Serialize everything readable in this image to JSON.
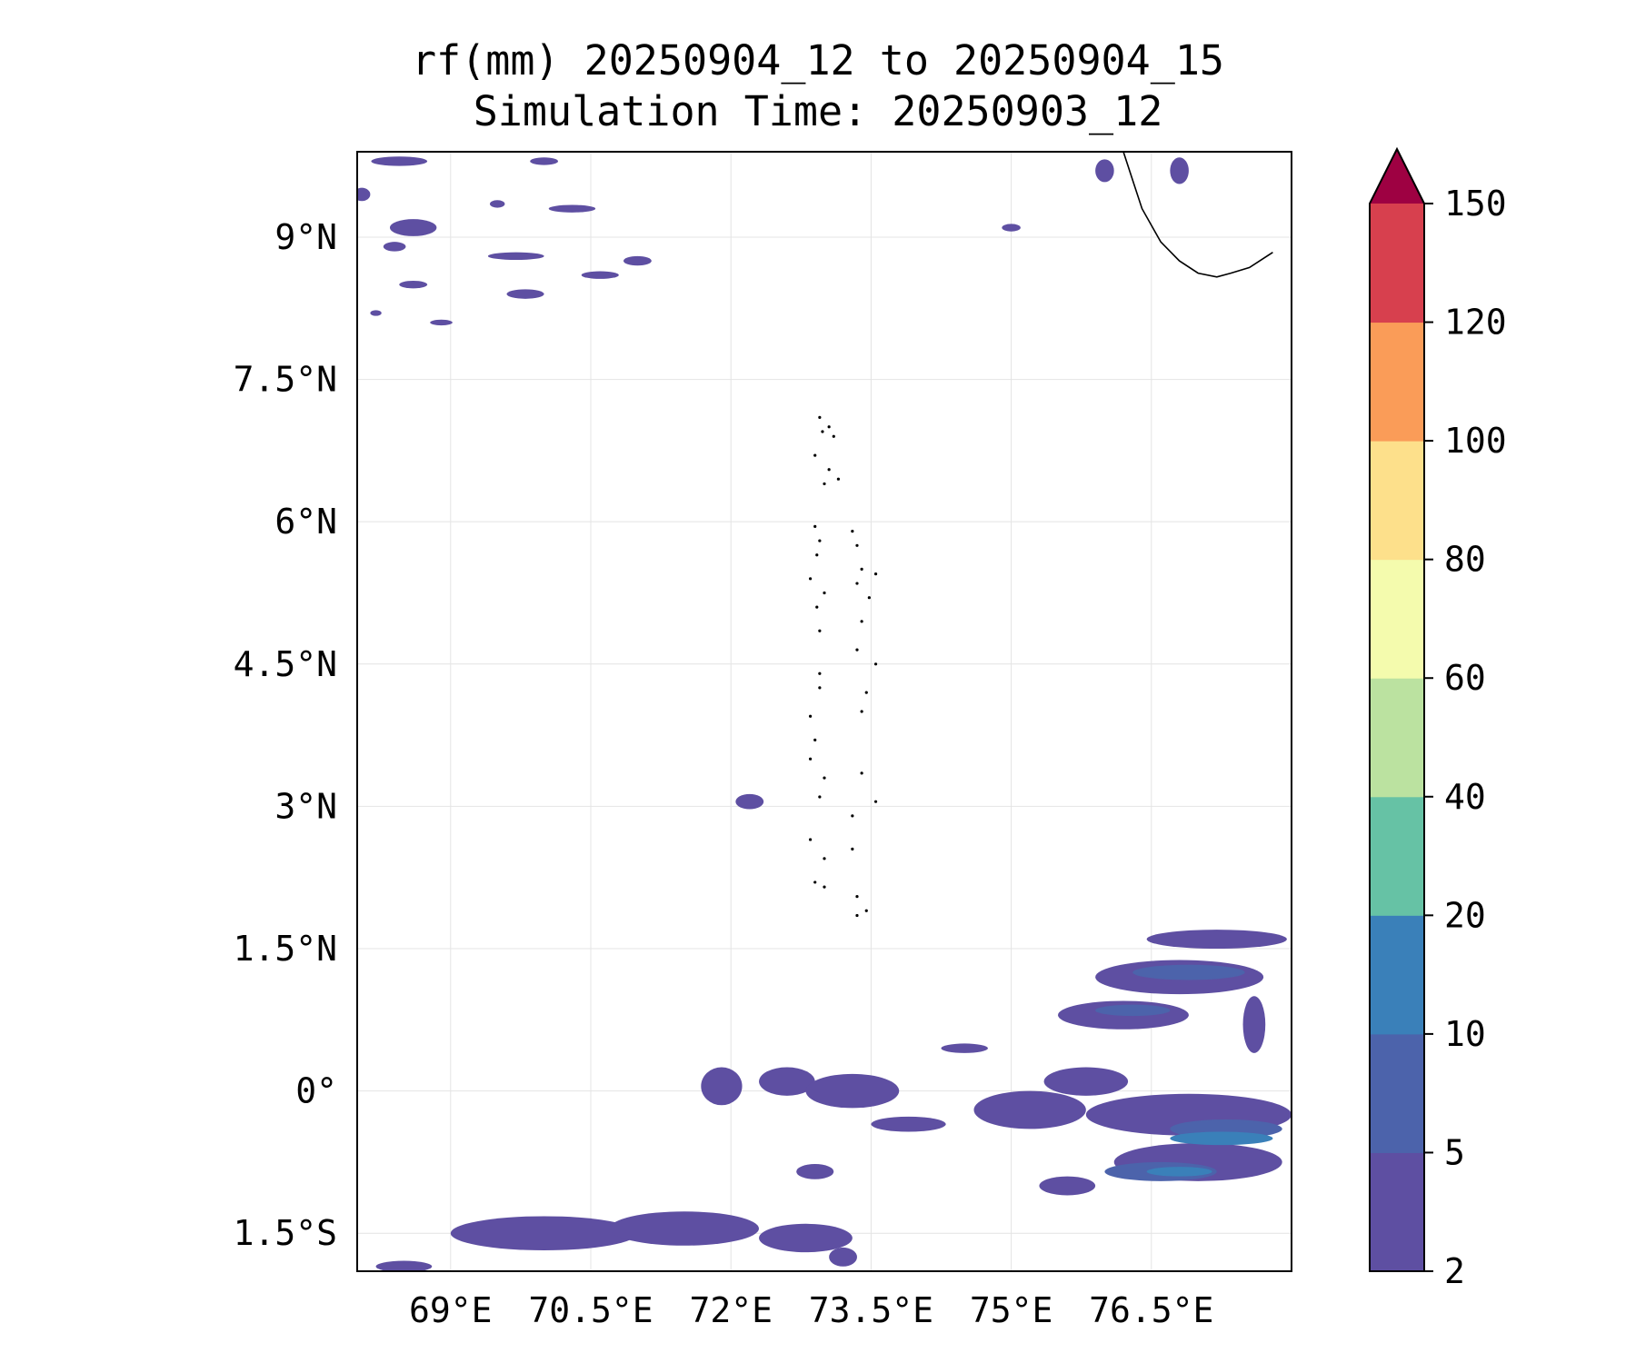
{
  "title": {
    "line1": "rf(mm) 20250904_12 to 20250904_15",
    "line2": "Simulation Time: 20250903_12"
  },
  "map": {
    "lon_range": [
      68.0,
      78.0
    ],
    "lat_range": [
      -1.9,
      9.9
    ],
    "x_ticks": [
      {
        "value": 69.0,
        "label": "69°E"
      },
      {
        "value": 70.5,
        "label": "70.5°E"
      },
      {
        "value": 72.0,
        "label": "72°E"
      },
      {
        "value": 73.5,
        "label": "73.5°E"
      },
      {
        "value": 75.0,
        "label": "75°E"
      },
      {
        "value": 76.5,
        "label": "76.5°E"
      }
    ],
    "y_ticks": [
      {
        "value": 9.0,
        "label": "9°N"
      },
      {
        "value": 7.5,
        "label": "7.5°N"
      },
      {
        "value": 6.0,
        "label": "6°N"
      },
      {
        "value": 4.5,
        "label": "4.5°N"
      },
      {
        "value": 3.0,
        "label": "3°N"
      },
      {
        "value": 1.5,
        "label": "1.5°N"
      },
      {
        "value": 0.0,
        "label": "0°"
      },
      {
        "value": -1.5,
        "label": "1.5°S"
      }
    ],
    "grid": true,
    "coastline": [
      [
        76.2,
        9.9
      ],
      [
        76.3,
        9.6
      ],
      [
        76.4,
        9.3
      ],
      [
        76.6,
        8.95
      ],
      [
        76.8,
        8.75
      ],
      [
        77.0,
        8.62
      ],
      [
        77.2,
        8.58
      ],
      [
        77.35,
        8.62
      ],
      [
        77.55,
        8.68
      ],
      [
        77.8,
        8.84
      ]
    ],
    "islands": [
      [
        72.95,
        7.1
      ],
      [
        73.05,
        7.0
      ],
      [
        73.1,
        6.9
      ],
      [
        72.98,
        6.95
      ],
      [
        72.9,
        6.7
      ],
      [
        73.05,
        6.55
      ],
      [
        73.15,
        6.45
      ],
      [
        73.0,
        6.4
      ],
      [
        72.9,
        5.95
      ],
      [
        72.95,
        5.8
      ],
      [
        72.92,
        5.65
      ],
      [
        73.3,
        5.9
      ],
      [
        73.35,
        5.75
      ],
      [
        73.4,
        5.5
      ],
      [
        73.55,
        5.45
      ],
      [
        72.85,
        5.4
      ],
      [
        73.0,
        5.25
      ],
      [
        72.92,
        5.1
      ],
      [
        73.35,
        5.35
      ],
      [
        73.48,
        5.2
      ],
      [
        73.4,
        4.95
      ],
      [
        72.95,
        4.85
      ],
      [
        73.35,
        4.65
      ],
      [
        73.55,
        4.5
      ],
      [
        72.95,
        4.4
      ],
      [
        73.45,
        4.2
      ],
      [
        72.95,
        4.25
      ],
      [
        72.85,
        3.95
      ],
      [
        73.4,
        4.0
      ],
      [
        72.9,
        3.7
      ],
      [
        72.85,
        3.5
      ],
      [
        73.0,
        3.3
      ],
      [
        72.95,
        3.1
      ],
      [
        73.4,
        3.35
      ],
      [
        73.55,
        3.05
      ],
      [
        73.3,
        2.9
      ],
      [
        72.85,
        2.65
      ],
      [
        73.0,
        2.45
      ],
      [
        73.3,
        2.55
      ],
      [
        72.9,
        2.2
      ],
      [
        73.0,
        2.15
      ],
      [
        73.35,
        2.05
      ],
      [
        73.45,
        1.9
      ],
      [
        73.35,
        1.85
      ]
    ]
  },
  "rain_fields": [
    {
      "level": "2-5",
      "lon": 68.05,
      "lat": 9.45,
      "rx": 0.09,
      "ry": 0.07
    },
    {
      "level": "2-5",
      "lon": 68.6,
      "lat": 9.1,
      "rx": 0.25,
      "ry": 0.09
    },
    {
      "level": "2-5",
      "lon": 68.45,
      "lat": 9.8,
      "rx": 0.3,
      "ry": 0.05
    },
    {
      "level": "2-5",
      "lon": 70.0,
      "lat": 9.8,
      "rx": 0.15,
      "ry": 0.04
    },
    {
      "level": "2-5",
      "lon": 69.5,
      "lat": 9.35,
      "rx": 0.08,
      "ry": 0.04
    },
    {
      "level": "2-5",
      "lon": 70.3,
      "lat": 9.3,
      "rx": 0.25,
      "ry": 0.04
    },
    {
      "level": "2-5",
      "lon": 68.4,
      "lat": 8.9,
      "rx": 0.12,
      "ry": 0.05
    },
    {
      "level": "2-5",
      "lon": 69.7,
      "lat": 8.8,
      "rx": 0.3,
      "ry": 0.04
    },
    {
      "level": "2-5",
      "lon": 70.6,
      "lat": 8.6,
      "rx": 0.2,
      "ry": 0.04
    },
    {
      "level": "2-5",
      "lon": 68.6,
      "lat": 8.5,
      "rx": 0.15,
      "ry": 0.04
    },
    {
      "level": "2-5",
      "lon": 69.8,
      "lat": 8.4,
      "rx": 0.2,
      "ry": 0.05
    },
    {
      "level": "2-5",
      "lon": 71.0,
      "lat": 8.75,
      "rx": 0.15,
      "ry": 0.05
    },
    {
      "level": "2-5",
      "lon": 68.9,
      "lat": 8.1,
      "rx": 0.12,
      "ry": 0.03
    },
    {
      "level": "2-5",
      "lon": 68.2,
      "lat": 8.2,
      "rx": 0.06,
      "ry": 0.03
    },
    {
      "level": "2-5",
      "lon": 75.0,
      "lat": 9.1,
      "rx": 0.1,
      "ry": 0.04
    },
    {
      "level": "2-5",
      "lon": 76.0,
      "lat": 9.7,
      "rx": 0.1,
      "ry": 0.12
    },
    {
      "level": "2-5",
      "lon": 76.8,
      "lat": 9.7,
      "rx": 0.1,
      "ry": 0.14
    },
    {
      "level": "2-5",
      "lon": 72.2,
      "lat": 3.05,
      "rx": 0.15,
      "ry": 0.08
    },
    {
      "level": "2-5",
      "lon": 71.9,
      "lat": 0.05,
      "rx": 0.22,
      "ry": 0.2
    },
    {
      "level": "2-5",
      "lon": 72.6,
      "lat": 0.1,
      "rx": 0.3,
      "ry": 0.15
    },
    {
      "level": "2-5",
      "lon": 73.3,
      "lat": 0.0,
      "rx": 0.5,
      "ry": 0.18
    },
    {
      "level": "2-5",
      "lon": 73.9,
      "lat": -0.35,
      "rx": 0.4,
      "ry": 0.08
    },
    {
      "level": "2-5",
      "lon": 72.9,
      "lat": -0.85,
      "rx": 0.2,
      "ry": 0.08
    },
    {
      "level": "2-5",
      "lon": 74.5,
      "lat": 0.45,
      "rx": 0.25,
      "ry": 0.05
    },
    {
      "level": "2-5",
      "lon": 75.2,
      "lat": -0.2,
      "rx": 0.6,
      "ry": 0.2
    },
    {
      "level": "2-5",
      "lon": 75.8,
      "lat": 0.1,
      "rx": 0.45,
      "ry": 0.15
    },
    {
      "level": "2-5",
      "lon": 76.2,
      "lat": 0.8,
      "rx": 0.7,
      "ry": 0.15
    },
    {
      "level": "2-5",
      "lon": 76.8,
      "lat": 1.2,
      "rx": 0.9,
      "ry": 0.18
    },
    {
      "level": "2-5",
      "lon": 77.2,
      "lat": 1.6,
      "rx": 0.75,
      "ry": 0.1
    },
    {
      "level": "2-5",
      "lon": 76.9,
      "lat": -0.25,
      "rx": 1.1,
      "ry": 0.22
    },
    {
      "level": "2-5",
      "lon": 77.0,
      "lat": -0.75,
      "rx": 0.9,
      "ry": 0.2
    },
    {
      "level": "2-5",
      "lon": 75.6,
      "lat": -1.0,
      "rx": 0.3,
      "ry": 0.1
    },
    {
      "level": "2-5",
      "lon": 70.0,
      "lat": -1.5,
      "rx": 1.0,
      "ry": 0.18
    },
    {
      "level": "2-5",
      "lon": 71.5,
      "lat": -1.45,
      "rx": 0.8,
      "ry": 0.18
    },
    {
      "level": "2-5",
      "lon": 72.8,
      "lat": -1.55,
      "rx": 0.5,
      "ry": 0.15
    },
    {
      "level": "2-5",
      "lon": 68.5,
      "lat": -1.85,
      "rx": 0.3,
      "ry": 0.06
    },
    {
      "level": "2-5",
      "lon": 73.2,
      "lat": -1.75,
      "rx": 0.15,
      "ry": 0.1
    },
    {
      "level": "2-5",
      "lon": 77.6,
      "lat": 0.7,
      "rx": 0.12,
      "ry": 0.3
    },
    {
      "level": "5-10",
      "lon": 76.9,
      "lat": 1.25,
      "rx": 0.6,
      "ry": 0.08
    },
    {
      "level": "5-10",
      "lon": 77.3,
      "lat": -0.4,
      "rx": 0.6,
      "ry": 0.1
    },
    {
      "level": "5-10",
      "lon": 76.3,
      "lat": 0.85,
      "rx": 0.4,
      "ry": 0.06
    },
    {
      "level": "5-10",
      "lon": 76.6,
      "lat": -0.85,
      "rx": 0.6,
      "ry": 0.1
    },
    {
      "level": "10-20",
      "lon": 77.25,
      "lat": -0.5,
      "rx": 0.55,
      "ry": 0.07
    },
    {
      "level": "10-20",
      "lon": 76.8,
      "lat": -0.85,
      "rx": 0.35,
      "ry": 0.05
    }
  ],
  "colorbar": {
    "levels": [
      2,
      5,
      10,
      20,
      40,
      60,
      80,
      100,
      120,
      150
    ],
    "labels": [
      "2",
      "5",
      "10",
      "20",
      "40",
      "60",
      "80",
      "100",
      "120",
      "150"
    ],
    "colors": [
      "#5e4fa2",
      "#4c63ab",
      "#3a80b9",
      "#66c2a5",
      "#bbe2a0",
      "#f4fbad",
      "#fde08b",
      "#fa9c58",
      "#d7404e"
    ],
    "extend_color": "#9e0142"
  }
}
